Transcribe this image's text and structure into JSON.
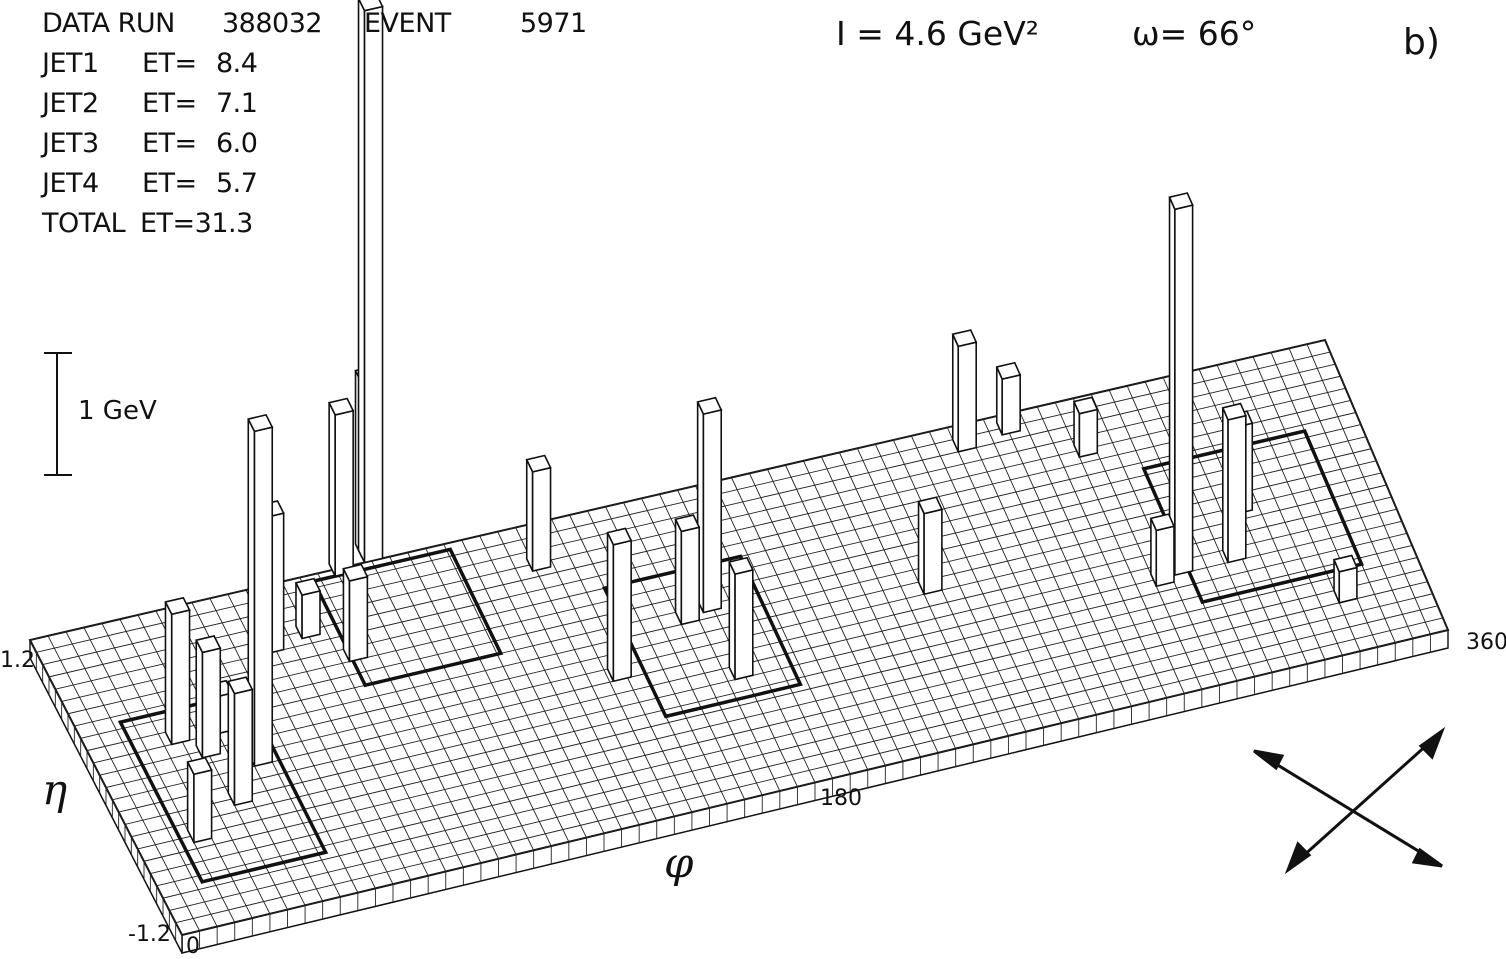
{
  "header": {
    "run_label": "DATA RUN",
    "run_number": "388032",
    "event_label": "EVENT",
    "event_number": "5971",
    "q2": "I = 4.6 GeV²",
    "omega": "ω= 66°",
    "panel": "b)"
  },
  "jets": [
    {
      "name": "JET1",
      "label": "ET=",
      "value": "8.4"
    },
    {
      "name": "JET2",
      "label": "ET=",
      "value": "7.1"
    },
    {
      "name": "JET3",
      "label": "ET=",
      "value": "6.0"
    },
    {
      "name": "JET4",
      "label": "ET=",
      "value": "5.7"
    }
  ],
  "total": {
    "name": "TOTAL",
    "label": "ET=31.3"
  },
  "scale_bar": {
    "label": "1 GeV"
  },
  "axes": {
    "eta_symbol": "η",
    "phi_symbol": "φ",
    "eta_min_label": "-1.2",
    "eta_max_label": "1.2",
    "phi_min_label": "0",
    "phi_mid_label": "180",
    "phi_max_label": "360"
  },
  "chart_data": {
    "type": "lego",
    "x_axis": {
      "quantity": "φ",
      "range": [
        0,
        360
      ],
      "ticks": [
        "0",
        "180",
        "360"
      ]
    },
    "y_axis": {
      "quantity": "η",
      "range": [
        -1.2,
        1.2
      ],
      "ticks": [
        "-1.2",
        "1.2"
      ]
    },
    "z_scale": "1 GeV",
    "grid": {
      "phi_cells": 72,
      "eta_cells": 24
    },
    "towers": [
      {
        "phi": 15,
        "eta": -0.55,
        "et": 0.55
      },
      {
        "phi": 22,
        "eta": 0.2,
        "et": 1.05
      },
      {
        "phi": 28,
        "eta": 0.05,
        "et": 0.85
      },
      {
        "phi": 30,
        "eta": -0.35,
        "et": 0.9
      },
      {
        "phi": 34,
        "eta": 0.2,
        "et": 0.3
      },
      {
        "phi": 40,
        "eta": -0.1,
        "et": 2.7
      },
      {
        "phi": 57,
        "eta": 0.7,
        "et": 1.1
      },
      {
        "phi": 68,
        "eta": 0.75,
        "et": 0.35
      },
      {
        "phi": 77,
        "eta": 0.5,
        "et": 0.65
      },
      {
        "phi": 84,
        "eta": 1.15,
        "et": 1.3
      },
      {
        "phi": 93,
        "eta": 1.25,
        "et": 1.4
      },
      {
        "phi": 93,
        "eta": 1.2,
        "et": 4.45
      },
      {
        "phi": 134,
        "eta": 0.85,
        "et": 0.8
      },
      {
        "phi": 141,
        "eta": -0.1,
        "et": 1.1
      },
      {
        "phi": 165,
        "eta": 0.2,
        "et": 0.75
      },
      {
        "phi": 172,
        "eta": 0.25,
        "et": 1.6
      },
      {
        "phi": 172,
        "eta": -0.3,
        "et": 0.85
      },
      {
        "phi": 230,
        "eta": 0.0,
        "et": 0.65
      },
      {
        "phi": 255,
        "eta": 1.0,
        "et": 0.85
      },
      {
        "phi": 268,
        "eta": 1.05,
        "et": 0.45
      },
      {
        "phi": 285,
        "eta": 0.75,
        "et": 0.35
      },
      {
        "phi": 290,
        "eta": -0.35,
        "et": 0.45
      },
      {
        "phi": 296,
        "eta": -0.3,
        "et": 2.95
      },
      {
        "phi": 311,
        "eta": -0.3,
        "et": 1.15
      },
      {
        "phi": 318,
        "eta": 0.05,
        "et": 0.7
      },
      {
        "phi": 335,
        "eta": -0.8,
        "et": 0.25
      }
    ]
  }
}
